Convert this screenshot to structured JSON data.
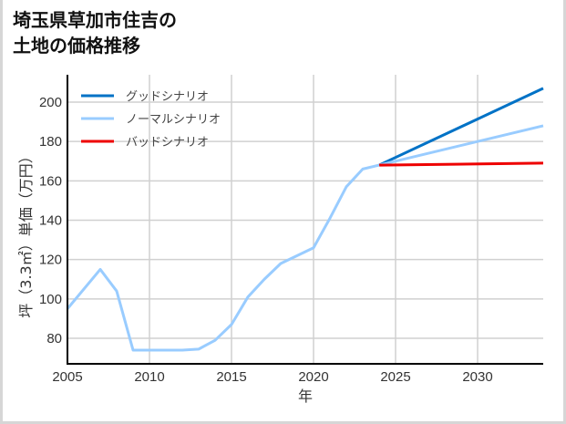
{
  "title": {
    "line1": "埼玉県草加市住吉の",
    "line2": "土地の価格推移"
  },
  "chart_data": {
    "type": "line",
    "title": "埼玉県草加市住吉の土地の価格推移",
    "xlabel": "年",
    "ylabel": "坪（3.3㎡）単価（万円）",
    "xlim": [
      2005,
      2034
    ],
    "ylim": [
      68,
      214
    ],
    "x_ticks": [
      2005,
      2010,
      2015,
      2020,
      2025,
      2030
    ],
    "y_ticks": [
      80,
      100,
      120,
      140,
      160,
      180,
      200
    ],
    "grid": true,
    "legend_position": "upper left",
    "series": [
      {
        "name": "ノーマルシナリオ",
        "role": "historical",
        "color": "#99ccff",
        "x": [
          2005,
          2007,
          2008,
          2009,
          2010,
          2011,
          2012,
          2013,
          2014,
          2015,
          2016,
          2017,
          2018,
          2019,
          2020,
          2021,
          2022,
          2023,
          2024
        ],
        "y": [
          95,
          115,
          104,
          74,
          74,
          74,
          74,
          74.5,
          79,
          87,
          101,
          110,
          118,
          122,
          126,
          141,
          157,
          166,
          168
        ]
      },
      {
        "name": "グッドシナリオ",
        "color": "#0072c6",
        "x": [
          2024,
          2034
        ],
        "y": [
          168,
          207
        ]
      },
      {
        "name": "ノーマルシナリオ",
        "color": "#99ccff",
        "x": [
          2024,
          2034
        ],
        "y": [
          168,
          188
        ]
      },
      {
        "name": "バッドシナリオ",
        "color": "#ee0000",
        "x": [
          2024,
          2034
        ],
        "y": [
          168,
          169
        ]
      }
    ],
    "legend": [
      {
        "label": "グッドシナリオ",
        "color": "#0072c6"
      },
      {
        "label": "ノーマルシナリオ",
        "color": "#99ccff"
      },
      {
        "label": "バッドシナリオ",
        "color": "#ee0000"
      }
    ]
  },
  "colors": {
    "grid": "#d0d0d0",
    "axis": "#000000"
  }
}
